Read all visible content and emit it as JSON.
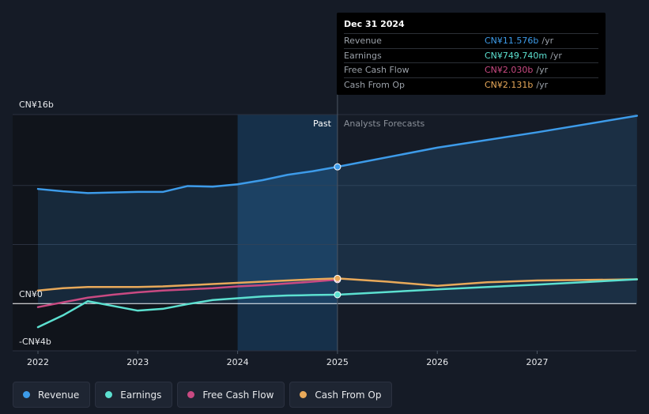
{
  "chart_data": {
    "type": "line",
    "x_ticks": [
      2022,
      2023,
      2024,
      2025,
      2026,
      2027
    ],
    "xlim": [
      2022,
      2028
    ],
    "ylim": [
      -4,
      16
    ],
    "y_tick_labels": [
      {
        "value": 16,
        "label": "CN¥16b"
      },
      {
        "value": 0,
        "label": "CN¥0"
      },
      {
        "value": -4,
        "label": "-CN¥4b"
      }
    ],
    "past_label": "Past",
    "forecast_label": "Analysts Forecasts",
    "past_end": 2025,
    "shade_start": 2024,
    "series": [
      {
        "name": "Revenue",
        "key": "revenue",
        "color": "#3d9be9",
        "fill": true,
        "points": [
          [
            2022,
            9.7
          ],
          [
            2022.25,
            9.5
          ],
          [
            2022.5,
            9.35
          ],
          [
            2022.75,
            9.4
          ],
          [
            2023,
            9.45
          ],
          [
            2023.25,
            9.45
          ],
          [
            2023.5,
            9.95
          ],
          [
            2023.75,
            9.9
          ],
          [
            2024,
            10.1
          ],
          [
            2024.25,
            10.45
          ],
          [
            2024.5,
            10.9
          ],
          [
            2024.75,
            11.2
          ],
          [
            2025,
            11.576
          ],
          [
            2026,
            13.2
          ],
          [
            2027,
            14.5
          ],
          [
            2028,
            15.9
          ]
        ],
        "past_until": 2025
      },
      {
        "name": "Earnings",
        "key": "earnings",
        "color": "#5ce0d0",
        "fill": false,
        "points": [
          [
            2022,
            -2.0
          ],
          [
            2022.25,
            -1.0
          ],
          [
            2022.5,
            0.2
          ],
          [
            2022.75,
            -0.2
          ],
          [
            2023,
            -0.6
          ],
          [
            2023.25,
            -0.45
          ],
          [
            2023.5,
            -0.05
          ],
          [
            2023.75,
            0.3
          ],
          [
            2024,
            0.45
          ],
          [
            2024.25,
            0.6
          ],
          [
            2024.5,
            0.68
          ],
          [
            2024.75,
            0.72
          ],
          [
            2025,
            0.75
          ],
          [
            2026,
            1.2
          ],
          [
            2027,
            1.6
          ],
          [
            2028,
            2.05
          ]
        ],
        "past_until": 2025
      },
      {
        "name": "Free Cash Flow",
        "key": "fcf",
        "color": "#c94a82",
        "fill": false,
        "points": [
          [
            2022,
            -0.3
          ],
          [
            2022.25,
            0.1
          ],
          [
            2022.5,
            0.5
          ],
          [
            2022.75,
            0.75
          ],
          [
            2023,
            0.95
          ],
          [
            2023.25,
            1.1
          ],
          [
            2023.5,
            1.2
          ],
          [
            2023.75,
            1.3
          ],
          [
            2024,
            1.45
          ],
          [
            2024.25,
            1.55
          ],
          [
            2024.5,
            1.7
          ],
          [
            2024.75,
            1.85
          ],
          [
            2025,
            2.03
          ]
        ],
        "past_until": 2025
      },
      {
        "name": "Cash From Op",
        "key": "cfo",
        "color": "#e8a95a",
        "fill": false,
        "points": [
          [
            2022,
            1.1
          ],
          [
            2022.25,
            1.3
          ],
          [
            2022.5,
            1.4
          ],
          [
            2022.75,
            1.4
          ],
          [
            2023,
            1.4
          ],
          [
            2023.25,
            1.45
          ],
          [
            2023.5,
            1.55
          ],
          [
            2023.75,
            1.65
          ],
          [
            2024,
            1.75
          ],
          [
            2024.25,
            1.85
          ],
          [
            2024.5,
            1.95
          ],
          [
            2024.75,
            2.05
          ],
          [
            2025,
            2.131
          ],
          [
            2025.5,
            1.85
          ],
          [
            2026,
            1.5
          ],
          [
            2026.5,
            1.8
          ],
          [
            2027,
            1.95
          ],
          [
            2027.5,
            2.0
          ],
          [
            2028,
            2.05
          ]
        ],
        "past_until": 2025
      }
    ]
  },
  "tooltip": {
    "date": "Dec 31 2024",
    "rows": [
      {
        "label": "Revenue",
        "value": "CN¥11.576b",
        "unit": "/yr",
        "color": "#3d9be9"
      },
      {
        "label": "Earnings",
        "value": "CN¥749.740m",
        "unit": "/yr",
        "color": "#5ce0d0"
      },
      {
        "label": "Free Cash Flow",
        "value": "CN¥2.030b",
        "unit": "/yr",
        "color": "#c94a82"
      },
      {
        "label": "Cash From Op",
        "value": "CN¥2.131b",
        "unit": "/yr",
        "color": "#e8a95a"
      }
    ]
  },
  "legend": [
    {
      "label": "Revenue",
      "color": "#3d9be9"
    },
    {
      "label": "Earnings",
      "color": "#5ce0d0"
    },
    {
      "label": "Free Cash Flow",
      "color": "#c94a82"
    },
    {
      "label": "Cash From Op",
      "color": "#e8a95a"
    }
  ]
}
